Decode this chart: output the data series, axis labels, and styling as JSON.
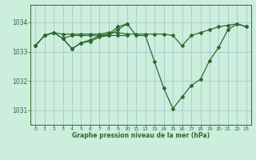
{
  "title": "Graphe pression niveau de la mer (hPa)",
  "bg_color": "#cceedd",
  "grid_color": "#aacccc",
  "line_color": "#2d6a2d",
  "xlim": [
    -0.5,
    23.5
  ],
  "ylim": [
    1030.5,
    1034.6
  ],
  "yticks": [
    1031,
    1032,
    1033,
    1034
  ],
  "xticks": [
    0,
    1,
    2,
    3,
    4,
    5,
    6,
    7,
    8,
    9,
    10,
    11,
    12,
    13,
    14,
    15,
    16,
    17,
    18,
    19,
    20,
    21,
    22,
    23
  ],
  "series_main": [
    [
      0,
      1033.2
    ],
    [
      1,
      1033.55
    ],
    [
      2,
      1033.65
    ],
    [
      3,
      1033.45
    ],
    [
      4,
      1033.1
    ],
    [
      5,
      1033.3
    ],
    [
      6,
      1033.4
    ],
    [
      7,
      1033.55
    ],
    [
      8,
      1033.6
    ],
    [
      9,
      1033.85
    ],
    [
      10,
      1033.95
    ],
    [
      11,
      1033.55
    ],
    [
      12,
      1033.55
    ],
    [
      13,
      1032.65
    ],
    [
      14,
      1031.75
    ],
    [
      15,
      1031.05
    ],
    [
      16,
      1031.45
    ],
    [
      17,
      1031.85
    ],
    [
      18,
      1032.05
    ],
    [
      19,
      1032.7
    ],
    [
      20,
      1033.15
    ],
    [
      21,
      1033.75
    ],
    [
      22,
      1033.95
    ],
    [
      23,
      1033.85
    ]
  ],
  "series_flat1": [
    [
      0,
      1033.2
    ],
    [
      1,
      1033.55
    ],
    [
      2,
      1033.65
    ],
    [
      3,
      1033.6
    ],
    [
      4,
      1033.6
    ],
    [
      5,
      1033.6
    ],
    [
      6,
      1033.6
    ],
    [
      7,
      1033.6
    ],
    [
      8,
      1033.65
    ],
    [
      9,
      1033.65
    ],
    [
      10,
      1033.6
    ],
    [
      11,
      1033.6
    ],
    [
      12,
      1033.6
    ],
    [
      13,
      1033.6
    ],
    [
      14,
      1033.6
    ],
    [
      15,
      1033.55
    ],
    [
      16,
      1033.2
    ],
    [
      17,
      1033.55
    ],
    [
      18,
      1033.65
    ],
    [
      19,
      1033.75
    ],
    [
      20,
      1033.85
    ],
    [
      21,
      1033.9
    ],
    [
      22,
      1033.95
    ],
    [
      23,
      1033.85
    ]
  ],
  "series_mid1": [
    [
      0,
      1033.2
    ],
    [
      1,
      1033.55
    ],
    [
      2,
      1033.65
    ],
    [
      3,
      1033.45
    ],
    [
      4,
      1033.55
    ],
    [
      5,
      1033.55
    ],
    [
      6,
      1033.55
    ],
    [
      7,
      1033.55
    ],
    [
      8,
      1033.55
    ],
    [
      9,
      1033.55
    ],
    [
      10,
      1033.55
    ]
  ],
  "series_mid2": [
    [
      3,
      1033.45
    ],
    [
      4,
      1033.1
    ],
    [
      5,
      1033.3
    ],
    [
      6,
      1033.35
    ],
    [
      7,
      1033.5
    ],
    [
      8,
      1033.55
    ],
    [
      9,
      1033.75
    ],
    [
      10,
      1033.95
    ]
  ]
}
